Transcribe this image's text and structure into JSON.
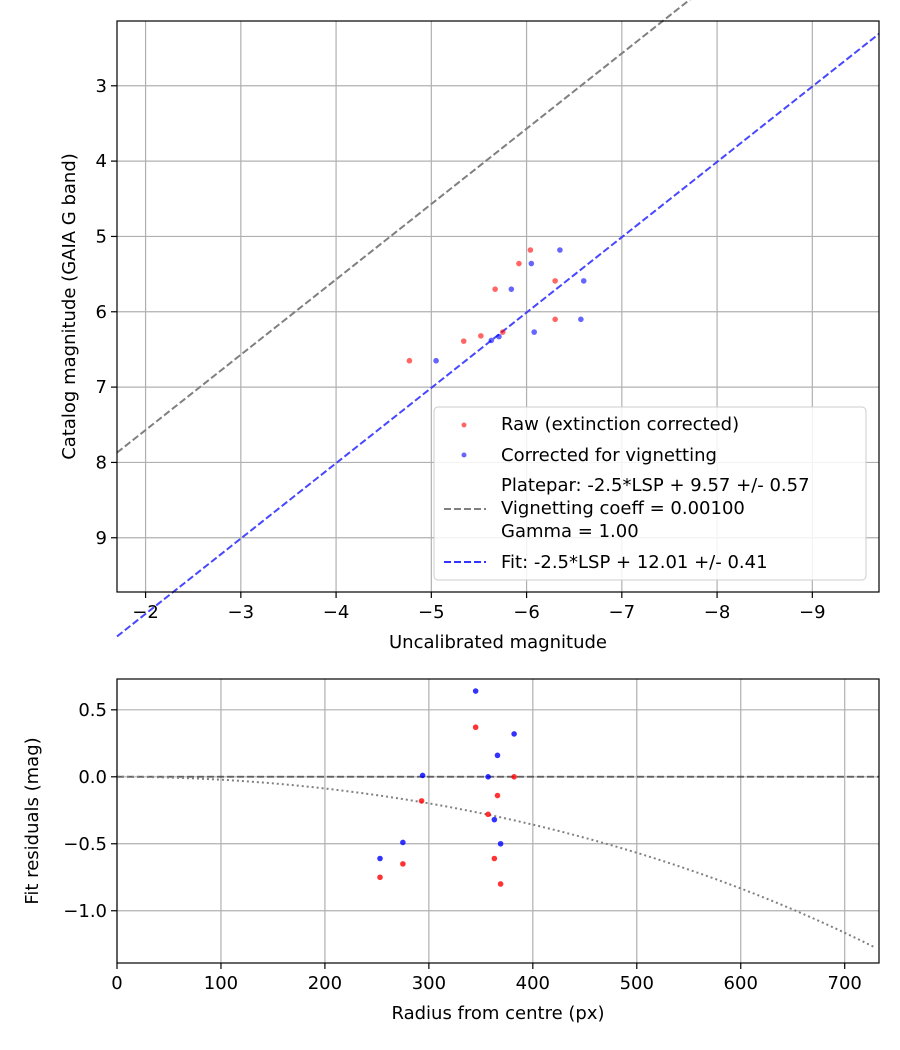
{
  "chart_data": [
    {
      "type": "scatter",
      "xlabel": "Uncalibrated magnitude",
      "ylabel": "Catalog magnitude (GAIA G band)",
      "xlim": [
        -1.7,
        -9.7
      ],
      "ylim": [
        9.72,
        2.14
      ],
      "x_ticks": [
        -2,
        -3,
        -4,
        -5,
        -6,
        -7,
        -8,
        -9
      ],
      "x_tick_labels": [
        "−2",
        "−3",
        "−4",
        "−5",
        "−6",
        "−7",
        "−8",
        "−9"
      ],
      "y_ticks": [
        3,
        4,
        5,
        6,
        7,
        8,
        9
      ],
      "y_tick_labels": [
        "3",
        "4",
        "5",
        "6",
        "7",
        "8",
        "9"
      ],
      "grid": true,
      "legend_position": "bottom-right",
      "series": [
        {
          "name": "Raw (extinction corrected)",
          "kind": "scatter",
          "color": "#ff0000",
          "points": [
            [
              -4.77,
              6.65
            ],
            [
              -5.34,
              6.39
            ],
            [
              -5.52,
              6.32
            ],
            [
              -5.67,
              5.7
            ],
            [
              -5.75,
              6.27
            ],
            [
              -5.92,
              5.36
            ],
            [
              -6.04,
              5.18
            ],
            [
              -6.3,
              5.59
            ],
            [
              -6.3,
              6.1
            ]
          ]
        },
        {
          "name": "Corrected for vignetting",
          "kind": "scatter",
          "color": "#0000ff",
          "points": [
            [
              -5.05,
              6.65
            ],
            [
              -5.63,
              6.38
            ],
            [
              -5.71,
              6.33
            ],
            [
              -5.84,
              5.7
            ],
            [
              -6.05,
              5.36
            ],
            [
              -6.08,
              6.27
            ],
            [
              -6.35,
              5.18
            ],
            [
              -6.57,
              6.1
            ],
            [
              -6.6,
              5.59
            ]
          ]
        },
        {
          "name": "Platepar",
          "kind": "line",
          "color": "#808080",
          "slope": -2.5,
          "intercept": 9.57,
          "legend_lines": [
            "Platepar: -2.5*LSP + 9.57 +/- 0.57",
            "Vignetting coeff = 0.00100",
            "Gamma = 1.00"
          ]
        },
        {
          "name": "Fit",
          "kind": "line",
          "color": "#3333ff",
          "slope": -2.5,
          "intercept": 12.01,
          "legend_lines": [
            "Fit: -2.5*LSP + 12.01 +/- 0.41"
          ]
        }
      ]
    },
    {
      "type": "scatter",
      "xlabel": "Radius from centre (px)",
      "ylabel": "Fit residuals (mag)",
      "xlim": [
        0,
        733
      ],
      "ylim": [
        -1.39,
        0.73
      ],
      "x_ticks": [
        0,
        100,
        200,
        300,
        400,
        500,
        600,
        700
      ],
      "x_tick_labels": [
        "0",
        "100",
        "200",
        "300",
        "400",
        "500",
        "600",
        "700"
      ],
      "y_ticks": [
        0.5,
        0.0,
        -0.5,
        -1.0
      ],
      "y_tick_labels": [
        "0.5",
        "0.0",
        "−0.5",
        "−1.0"
      ],
      "grid": true,
      "series": [
        {
          "name": "Raw residuals",
          "kind": "scatter",
          "color": "#ff0000",
          "points": [
            [
              253,
              -0.75
            ],
            [
              275,
              -0.65
            ],
            [
              293,
              -0.18
            ],
            [
              345,
              0.37
            ],
            [
              357,
              -0.28
            ],
            [
              363,
              -0.61
            ],
            [
              366,
              -0.14
            ],
            [
              369,
              -0.8
            ],
            [
              382,
              0.0
            ]
          ]
        },
        {
          "name": "Vignetting-corrected residuals",
          "kind": "scatter",
          "color": "#0000ff",
          "points": [
            [
              253,
              -0.61
            ],
            [
              275,
              -0.49
            ],
            [
              294,
              0.01
            ],
            [
              345,
              0.64
            ],
            [
              357,
              0.0
            ],
            [
              363,
              -0.32
            ],
            [
              366,
              0.16
            ],
            [
              369,
              -0.5
            ],
            [
              382,
              0.32
            ]
          ]
        },
        {
          "name": "Zero line",
          "kind": "hline",
          "color": "#000000",
          "y": 0.0
        },
        {
          "name": "Vignetting curve",
          "kind": "curve",
          "color": "#808080",
          "coefficient": 0.001
        }
      ]
    }
  ]
}
